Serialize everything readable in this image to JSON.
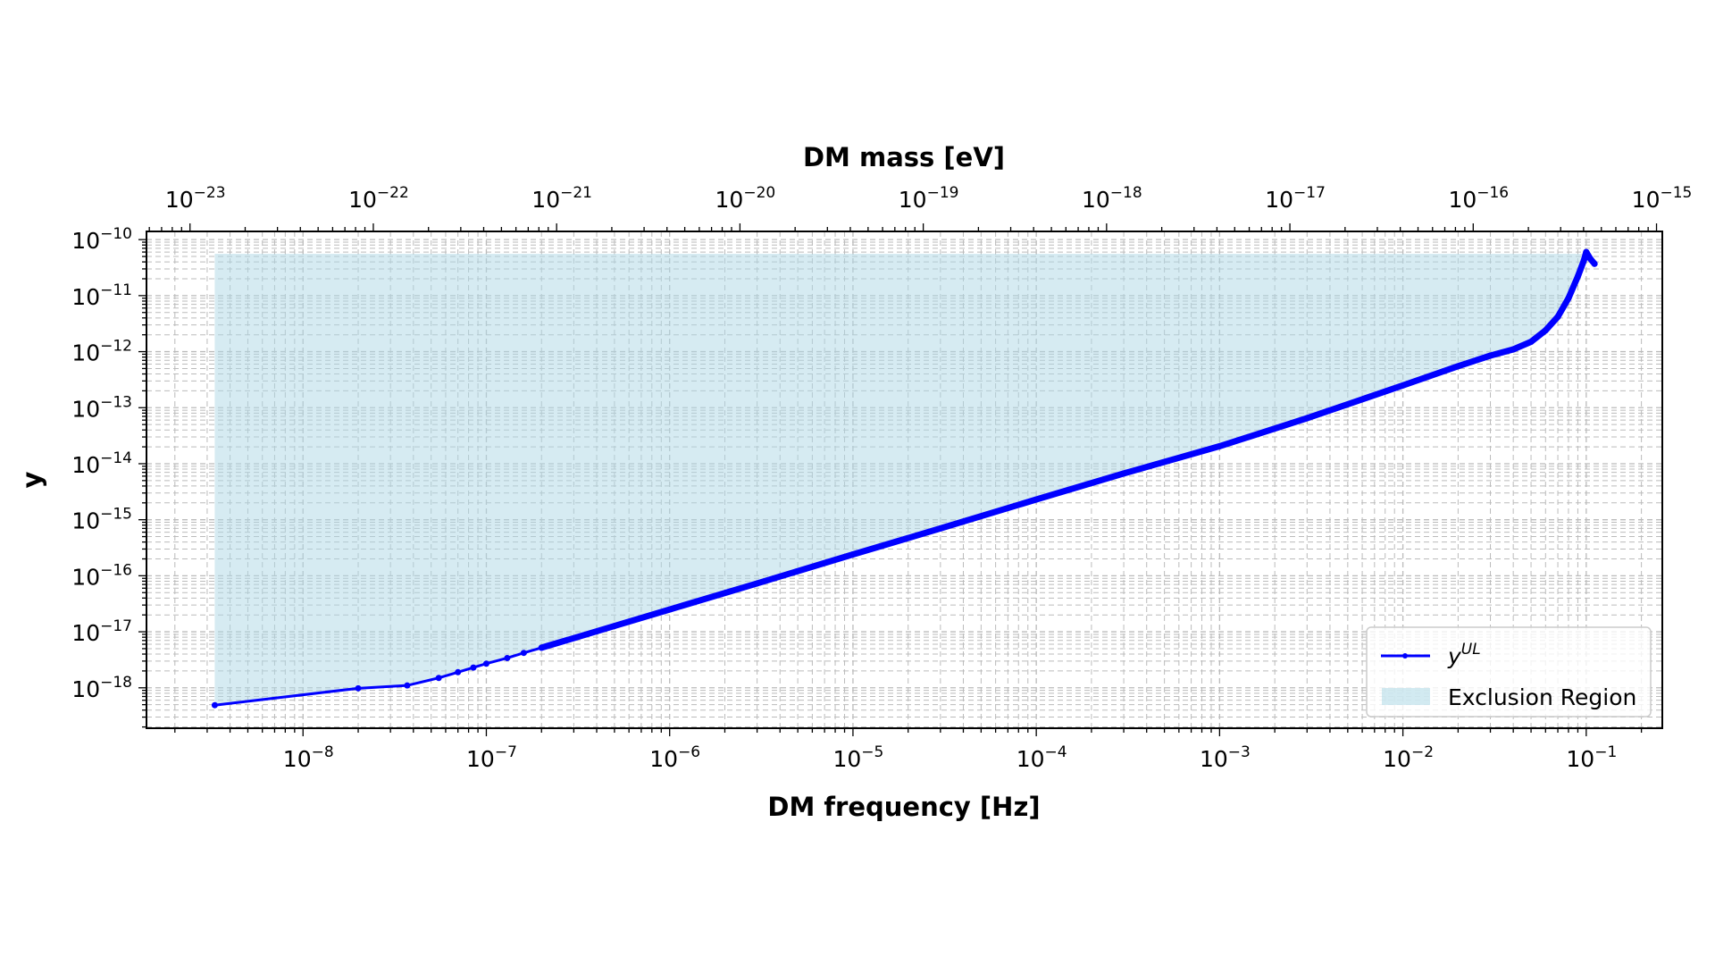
{
  "chart_data": {
    "type": "line",
    "title": "",
    "xlabel": "DM frequency [Hz]",
    "x2label": "DM mass [eV]",
    "ylabel": "y",
    "xscale": "log",
    "yscale": "log",
    "xlim": [
      1.4e-09,
      0.26
    ],
    "ylim": [
      1.9e-19,
      1.4e-10
    ],
    "x2_conversion": "mass = 4.1357e-15 * frequency",
    "grid": true,
    "legend_position": "lower-right",
    "xticks": [
      {
        "base": "10",
        "exp": "−8",
        "v": 1e-08
      },
      {
        "base": "10",
        "exp": "−7",
        "v": 1e-07
      },
      {
        "base": "10",
        "exp": "−6",
        "v": 1e-06
      },
      {
        "base": "10",
        "exp": "−5",
        "v": 1e-05
      },
      {
        "base": "10",
        "exp": "−4",
        "v": 0.0001
      },
      {
        "base": "10",
        "exp": "−3",
        "v": 0.001
      },
      {
        "base": "10",
        "exp": "−2",
        "v": 0.01
      },
      {
        "base": "10",
        "exp": "−1",
        "v": 0.1
      }
    ],
    "x2ticks": [
      {
        "base": "10",
        "exp": "−23",
        "v": 1e-23
      },
      {
        "base": "10",
        "exp": "−22",
        "v": 1e-22
      },
      {
        "base": "10",
        "exp": "−21",
        "v": 1e-21
      },
      {
        "base": "10",
        "exp": "−20",
        "v": 1e-20
      },
      {
        "base": "10",
        "exp": "−19",
        "v": 1e-19
      },
      {
        "base": "10",
        "exp": "−18",
        "v": 1e-18
      },
      {
        "base": "10",
        "exp": "−17",
        "v": 1e-17
      },
      {
        "base": "10",
        "exp": "−16",
        "v": 1e-16
      },
      {
        "base": "10",
        "exp": "−15",
        "v": 1e-15
      }
    ],
    "yticks": [
      {
        "base": "10",
        "exp": "−10",
        "v": 1e-10
      },
      {
        "base": "10",
        "exp": "−11",
        "v": 1e-11
      },
      {
        "base": "10",
        "exp": "−12",
        "v": 1e-12
      },
      {
        "base": "10",
        "exp": "−13",
        "v": 1e-13
      },
      {
        "base": "10",
        "exp": "−14",
        "v": 1e-14
      },
      {
        "base": "10",
        "exp": "−15",
        "v": 1e-15
      },
      {
        "base": "10",
        "exp": "−16",
        "v": 1e-16
      },
      {
        "base": "10",
        "exp": "−17",
        "v": 1e-17
      },
      {
        "base": "10",
        "exp": "−18",
        "v": 1e-18
      }
    ],
    "series": [
      {
        "name": "y^UL",
        "legend_base": "y",
        "legend_sup": "UL",
        "color": "#0000ff",
        "x": [
          3.3e-09,
          2e-08,
          3.7e-08,
          5.5e-08,
          7e-08,
          8.5e-08,
          1e-07,
          1.3e-07,
          1.6e-07,
          2e-07,
          3e-07,
          5e-07,
          1e-06,
          3e-06,
          1e-05,
          3e-05,
          0.0001,
          0.0003,
          0.001,
          0.003,
          0.01,
          0.02,
          0.03,
          0.04,
          0.05,
          0.06,
          0.07,
          0.08,
          0.09,
          0.097,
          0.1,
          0.105,
          0.111
        ],
        "y": [
          4.9e-19,
          9.8e-19,
          1.1e-18,
          1.5e-18,
          1.9e-18,
          2.3e-18,
          2.7e-18,
          3.4e-18,
          4.2e-18,
          5.2e-18,
          7.7e-18,
          1.27e-17,
          2.5e-17,
          7.3e-17,
          2.4e-16,
          7e-16,
          2.3e-15,
          6.7e-15,
          2.05e-14,
          6.5e-14,
          2.5e-13,
          5.5e-13,
          8.5e-13,
          1.1e-12,
          1.5e-12,
          2.4e-12,
          4.2e-12,
          9e-12,
          2.2e-11,
          4.2e-11,
          6e-11,
          4.6e-11,
          3.7e-11
        ]
      }
    ],
    "fill": {
      "name": "Exclusion Region",
      "color": "#add8e6",
      "alpha": 0.5,
      "upper_y": 5.6e-11
    }
  }
}
